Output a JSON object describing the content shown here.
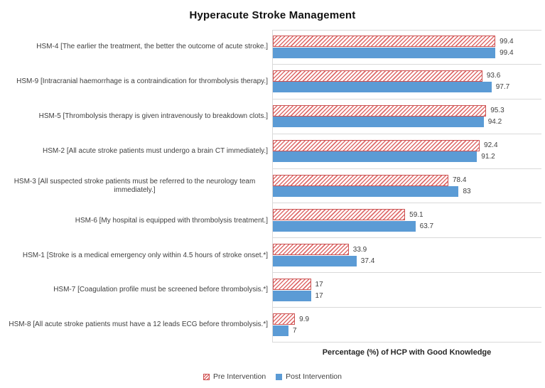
{
  "title": "Hyperacute Stroke Management",
  "chart_data": {
    "type": "bar",
    "orientation": "horizontal",
    "title": "Hyperacute Stroke Management",
    "xlabel": "Percentage (%) of HCP with Good Knowledge",
    "xlim": [
      0,
      120
    ],
    "grid": false,
    "legend_position": "bottom",
    "categories": [
      "HSM-4 [The earlier the treatment, the better the outcome of acute stroke.]",
      "HSM-9 [Intracranial haemorrhage is a contraindication for thrombolysis therapy.]",
      "HSM-5 [Thrombolysis therapy is given intravenously to breakdown clots.]",
      "HSM-2 [All acute stroke patients must undergo a brain CT immediately.]",
      "HSM-3 [All suspected stroke patients must be referred to the neurology team immediately.]",
      "HSM-6 [My hospital is equipped with thrombolysis treatment.]",
      "HSM-1 [Stroke is a medical emergency only within 4.5 hours of stroke onset.*]",
      "HSM-7 [Coagulation profile must be screened before thrombolysis.*]",
      "HSM-8 [All acute stroke patients must have a 12 leads ECG before thrombolysis.*]"
    ],
    "series": [
      {
        "name": "Pre Intervention",
        "style": "hatched-red",
        "values": [
          99.4,
          93.6,
          95.3,
          92.4,
          78.4,
          59.1,
          33.9,
          17,
          9.9
        ],
        "labels": [
          "99.4",
          "93.6",
          "95.3",
          "92.4",
          "78.4",
          "59.1",
          "33.9",
          "17",
          "9.9"
        ]
      },
      {
        "name": "Post Intervention",
        "style": "solid-blue",
        "values": [
          99.4,
          97.7,
          94.2,
          91.2,
          83,
          63.7,
          37.4,
          17,
          7
        ],
        "labels": [
          "99.4",
          "97.7",
          "94.2",
          "91.2",
          "83",
          "63.7",
          "37.4",
          "17",
          "7"
        ]
      }
    ]
  },
  "colors": {
    "post_bar": "#5B9BD5",
    "pre_stripe": "#DE6A6A",
    "pre_border": "#CC5252",
    "grid_line": "#D9D9D9",
    "text": "#404040"
  }
}
